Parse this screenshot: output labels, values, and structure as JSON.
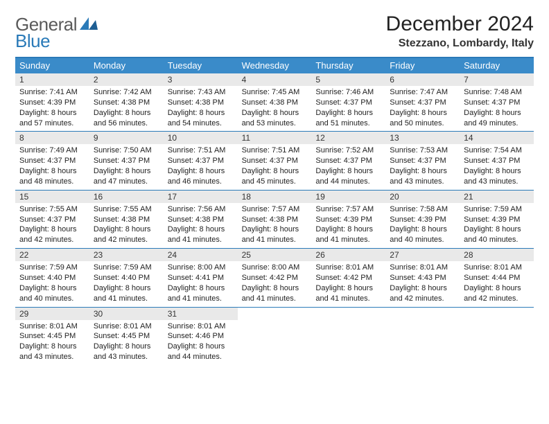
{
  "brand": {
    "word1": "General",
    "word2": "Blue"
  },
  "title": "December 2024",
  "location": "Stezzano, Lombardy, Italy",
  "colors": {
    "header_bg": "#3a8bc9",
    "rule": "#2a7ab8",
    "daynum_bg": "#e9e9e9",
    "text": "#222222",
    "header_text": "#ffffff"
  },
  "day_labels": [
    "Sunday",
    "Monday",
    "Tuesday",
    "Wednesday",
    "Thursday",
    "Friday",
    "Saturday"
  ],
  "weeks": [
    [
      {
        "n": "1",
        "sr": "Sunrise: 7:41 AM",
        "ss": "Sunset: 4:39 PM",
        "d1": "Daylight: 8 hours",
        "d2": "and 57 minutes."
      },
      {
        "n": "2",
        "sr": "Sunrise: 7:42 AM",
        "ss": "Sunset: 4:38 PM",
        "d1": "Daylight: 8 hours",
        "d2": "and 56 minutes."
      },
      {
        "n": "3",
        "sr": "Sunrise: 7:43 AM",
        "ss": "Sunset: 4:38 PM",
        "d1": "Daylight: 8 hours",
        "d2": "and 54 minutes."
      },
      {
        "n": "4",
        "sr": "Sunrise: 7:45 AM",
        "ss": "Sunset: 4:38 PM",
        "d1": "Daylight: 8 hours",
        "d2": "and 53 minutes."
      },
      {
        "n": "5",
        "sr": "Sunrise: 7:46 AM",
        "ss": "Sunset: 4:37 PM",
        "d1": "Daylight: 8 hours",
        "d2": "and 51 minutes."
      },
      {
        "n": "6",
        "sr": "Sunrise: 7:47 AM",
        "ss": "Sunset: 4:37 PM",
        "d1": "Daylight: 8 hours",
        "d2": "and 50 minutes."
      },
      {
        "n": "7",
        "sr": "Sunrise: 7:48 AM",
        "ss": "Sunset: 4:37 PM",
        "d1": "Daylight: 8 hours",
        "d2": "and 49 minutes."
      }
    ],
    [
      {
        "n": "8",
        "sr": "Sunrise: 7:49 AM",
        "ss": "Sunset: 4:37 PM",
        "d1": "Daylight: 8 hours",
        "d2": "and 48 minutes."
      },
      {
        "n": "9",
        "sr": "Sunrise: 7:50 AM",
        "ss": "Sunset: 4:37 PM",
        "d1": "Daylight: 8 hours",
        "d2": "and 47 minutes."
      },
      {
        "n": "10",
        "sr": "Sunrise: 7:51 AM",
        "ss": "Sunset: 4:37 PM",
        "d1": "Daylight: 8 hours",
        "d2": "and 46 minutes."
      },
      {
        "n": "11",
        "sr": "Sunrise: 7:51 AM",
        "ss": "Sunset: 4:37 PM",
        "d1": "Daylight: 8 hours",
        "d2": "and 45 minutes."
      },
      {
        "n": "12",
        "sr": "Sunrise: 7:52 AM",
        "ss": "Sunset: 4:37 PM",
        "d1": "Daylight: 8 hours",
        "d2": "and 44 minutes."
      },
      {
        "n": "13",
        "sr": "Sunrise: 7:53 AM",
        "ss": "Sunset: 4:37 PM",
        "d1": "Daylight: 8 hours",
        "d2": "and 43 minutes."
      },
      {
        "n": "14",
        "sr": "Sunrise: 7:54 AM",
        "ss": "Sunset: 4:37 PM",
        "d1": "Daylight: 8 hours",
        "d2": "and 43 minutes."
      }
    ],
    [
      {
        "n": "15",
        "sr": "Sunrise: 7:55 AM",
        "ss": "Sunset: 4:37 PM",
        "d1": "Daylight: 8 hours",
        "d2": "and 42 minutes."
      },
      {
        "n": "16",
        "sr": "Sunrise: 7:55 AM",
        "ss": "Sunset: 4:38 PM",
        "d1": "Daylight: 8 hours",
        "d2": "and 42 minutes."
      },
      {
        "n": "17",
        "sr": "Sunrise: 7:56 AM",
        "ss": "Sunset: 4:38 PM",
        "d1": "Daylight: 8 hours",
        "d2": "and 41 minutes."
      },
      {
        "n": "18",
        "sr": "Sunrise: 7:57 AM",
        "ss": "Sunset: 4:38 PM",
        "d1": "Daylight: 8 hours",
        "d2": "and 41 minutes."
      },
      {
        "n": "19",
        "sr": "Sunrise: 7:57 AM",
        "ss": "Sunset: 4:39 PM",
        "d1": "Daylight: 8 hours",
        "d2": "and 41 minutes."
      },
      {
        "n": "20",
        "sr": "Sunrise: 7:58 AM",
        "ss": "Sunset: 4:39 PM",
        "d1": "Daylight: 8 hours",
        "d2": "and 40 minutes."
      },
      {
        "n": "21",
        "sr": "Sunrise: 7:59 AM",
        "ss": "Sunset: 4:39 PM",
        "d1": "Daylight: 8 hours",
        "d2": "and 40 minutes."
      }
    ],
    [
      {
        "n": "22",
        "sr": "Sunrise: 7:59 AM",
        "ss": "Sunset: 4:40 PM",
        "d1": "Daylight: 8 hours",
        "d2": "and 40 minutes."
      },
      {
        "n": "23",
        "sr": "Sunrise: 7:59 AM",
        "ss": "Sunset: 4:40 PM",
        "d1": "Daylight: 8 hours",
        "d2": "and 41 minutes."
      },
      {
        "n": "24",
        "sr": "Sunrise: 8:00 AM",
        "ss": "Sunset: 4:41 PM",
        "d1": "Daylight: 8 hours",
        "d2": "and 41 minutes."
      },
      {
        "n": "25",
        "sr": "Sunrise: 8:00 AM",
        "ss": "Sunset: 4:42 PM",
        "d1": "Daylight: 8 hours",
        "d2": "and 41 minutes."
      },
      {
        "n": "26",
        "sr": "Sunrise: 8:01 AM",
        "ss": "Sunset: 4:42 PM",
        "d1": "Daylight: 8 hours",
        "d2": "and 41 minutes."
      },
      {
        "n": "27",
        "sr": "Sunrise: 8:01 AM",
        "ss": "Sunset: 4:43 PM",
        "d1": "Daylight: 8 hours",
        "d2": "and 42 minutes."
      },
      {
        "n": "28",
        "sr": "Sunrise: 8:01 AM",
        "ss": "Sunset: 4:44 PM",
        "d1": "Daylight: 8 hours",
        "d2": "and 42 minutes."
      }
    ],
    [
      {
        "n": "29",
        "sr": "Sunrise: 8:01 AM",
        "ss": "Sunset: 4:45 PM",
        "d1": "Daylight: 8 hours",
        "d2": "and 43 minutes."
      },
      {
        "n": "30",
        "sr": "Sunrise: 8:01 AM",
        "ss": "Sunset: 4:45 PM",
        "d1": "Daylight: 8 hours",
        "d2": "and 43 minutes."
      },
      {
        "n": "31",
        "sr": "Sunrise: 8:01 AM",
        "ss": "Sunset: 4:46 PM",
        "d1": "Daylight: 8 hours",
        "d2": "and 44 minutes."
      },
      null,
      null,
      null,
      null
    ]
  ]
}
